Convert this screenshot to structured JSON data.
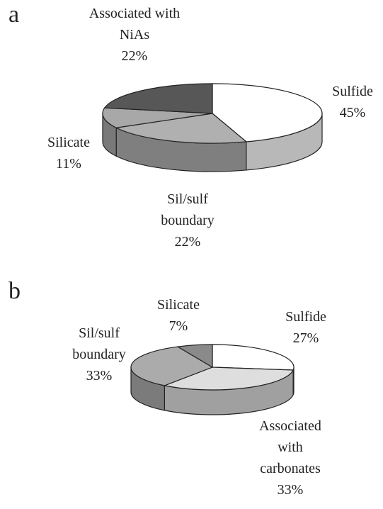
{
  "chart_data": [
    {
      "type": "pie3d",
      "label": "a",
      "categories": [
        "Sulfide",
        "Sil/sulf boundary",
        "Silicate",
        "Associated with NiAs"
      ],
      "values": [
        45,
        22,
        11,
        22
      ],
      "value_labels": [
        "45%",
        "22%",
        "11%",
        "22%"
      ],
      "colors": [
        "#ffffff",
        "#b0b0b0",
        "#a8a8a8",
        "#575757"
      ]
    },
    {
      "type": "pie3d",
      "label": "b",
      "categories": [
        "Sulfide",
        "Associated with carbonates",
        "Sil/sulf boundary",
        "Silicate"
      ],
      "values": [
        27,
        33,
        33,
        7
      ],
      "value_labels": [
        "27%",
        "33%",
        "33%",
        "7%"
      ],
      "colors": [
        "#ffffff",
        "#dedede",
        "#ababab",
        "#8a8a8a"
      ]
    }
  ]
}
